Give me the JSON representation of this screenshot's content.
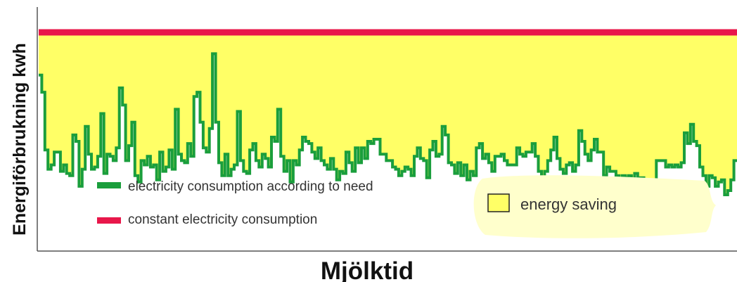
{
  "chart_data": {
    "type": "area",
    "xlabel": "Mjölktid",
    "ylabel": "Energiförbrukning kwh",
    "ylim": [
      0,
      100
    ],
    "grid": false,
    "series": [
      {
        "name": "constant electricity consumption",
        "color": "#e8174a",
        "constant_value": 100
      },
      {
        "name": "electricity consumption according to need",
        "color": "#1a9e3c",
        "values": [
          80,
          72,
          45,
          36,
          38,
          44,
          44,
          35,
          38,
          34,
          33,
          52,
          49,
          28,
          36,
          56,
          43,
          36,
          37,
          42,
          62,
          34,
          43,
          42,
          40,
          46,
          74,
          66,
          40,
          47,
          58,
          33,
          30,
          40,
          38,
          42,
          37,
          38,
          31,
          44,
          35,
          37,
          45,
          36,
          64,
          43,
          40,
          39,
          48,
          42,
          70,
          72,
          58,
          46,
          44,
          55,
          90,
          58,
          39,
          33,
          43,
          33,
          36,
          38,
          63,
          40,
          35,
          34,
          45,
          48,
          40,
          37,
          43,
          41,
          37,
          51,
          49,
          64,
          42,
          35,
          40,
          30,
          40,
          38,
          45,
          51,
          49,
          48,
          44,
          41,
          46,
          40,
          38,
          36,
          41,
          36,
          31,
          35,
          34,
          44,
          39,
          35,
          46,
          39,
          46,
          41,
          49,
          48,
          50,
          50,
          43,
          43,
          40,
          40,
          37,
          36,
          33,
          35,
          37,
          36,
          33,
          42,
          46,
          41,
          40,
          32,
          45,
          49,
          42,
          43,
          56,
          52,
          39,
          38,
          34,
          39,
          33,
          38,
          31,
          35,
          33,
          46,
          48,
          41,
          43,
          39,
          35,
          42,
          42,
          43,
          40,
          38,
          38,
          38,
          46,
          43,
          42,
          44,
          44,
          48,
          42,
          35,
          32,
          35,
          40,
          45,
          51,
          41,
          36,
          34,
          38,
          39,
          35,
          38,
          54,
          49,
          43,
          40,
          45,
          50,
          44,
          44,
          33,
          37,
          35,
          35,
          33,
          30,
          33,
          32,
          33,
          31,
          34,
          32,
          32,
          27,
          29,
          29,
          31,
          40,
          40,
          40,
          37,
          38,
          37,
          38,
          37,
          39,
          53,
          48,
          57,
          49,
          47,
          37,
          33,
          28,
          33,
          32,
          28,
          30,
          31,
          24,
          26,
          31,
          40
        ]
      }
    ],
    "annotations": [
      {
        "label": "energy saving",
        "color": "#ffff66"
      }
    ],
    "legend": {
      "placement": "bottom-left",
      "items": [
        {
          "label": "electricity consumption according to need",
          "color": "#1a9e3c"
        },
        {
          "label": "constant electricity consumption",
          "color": "#e8174a"
        }
      ]
    },
    "fill_color": "#ffff66"
  }
}
